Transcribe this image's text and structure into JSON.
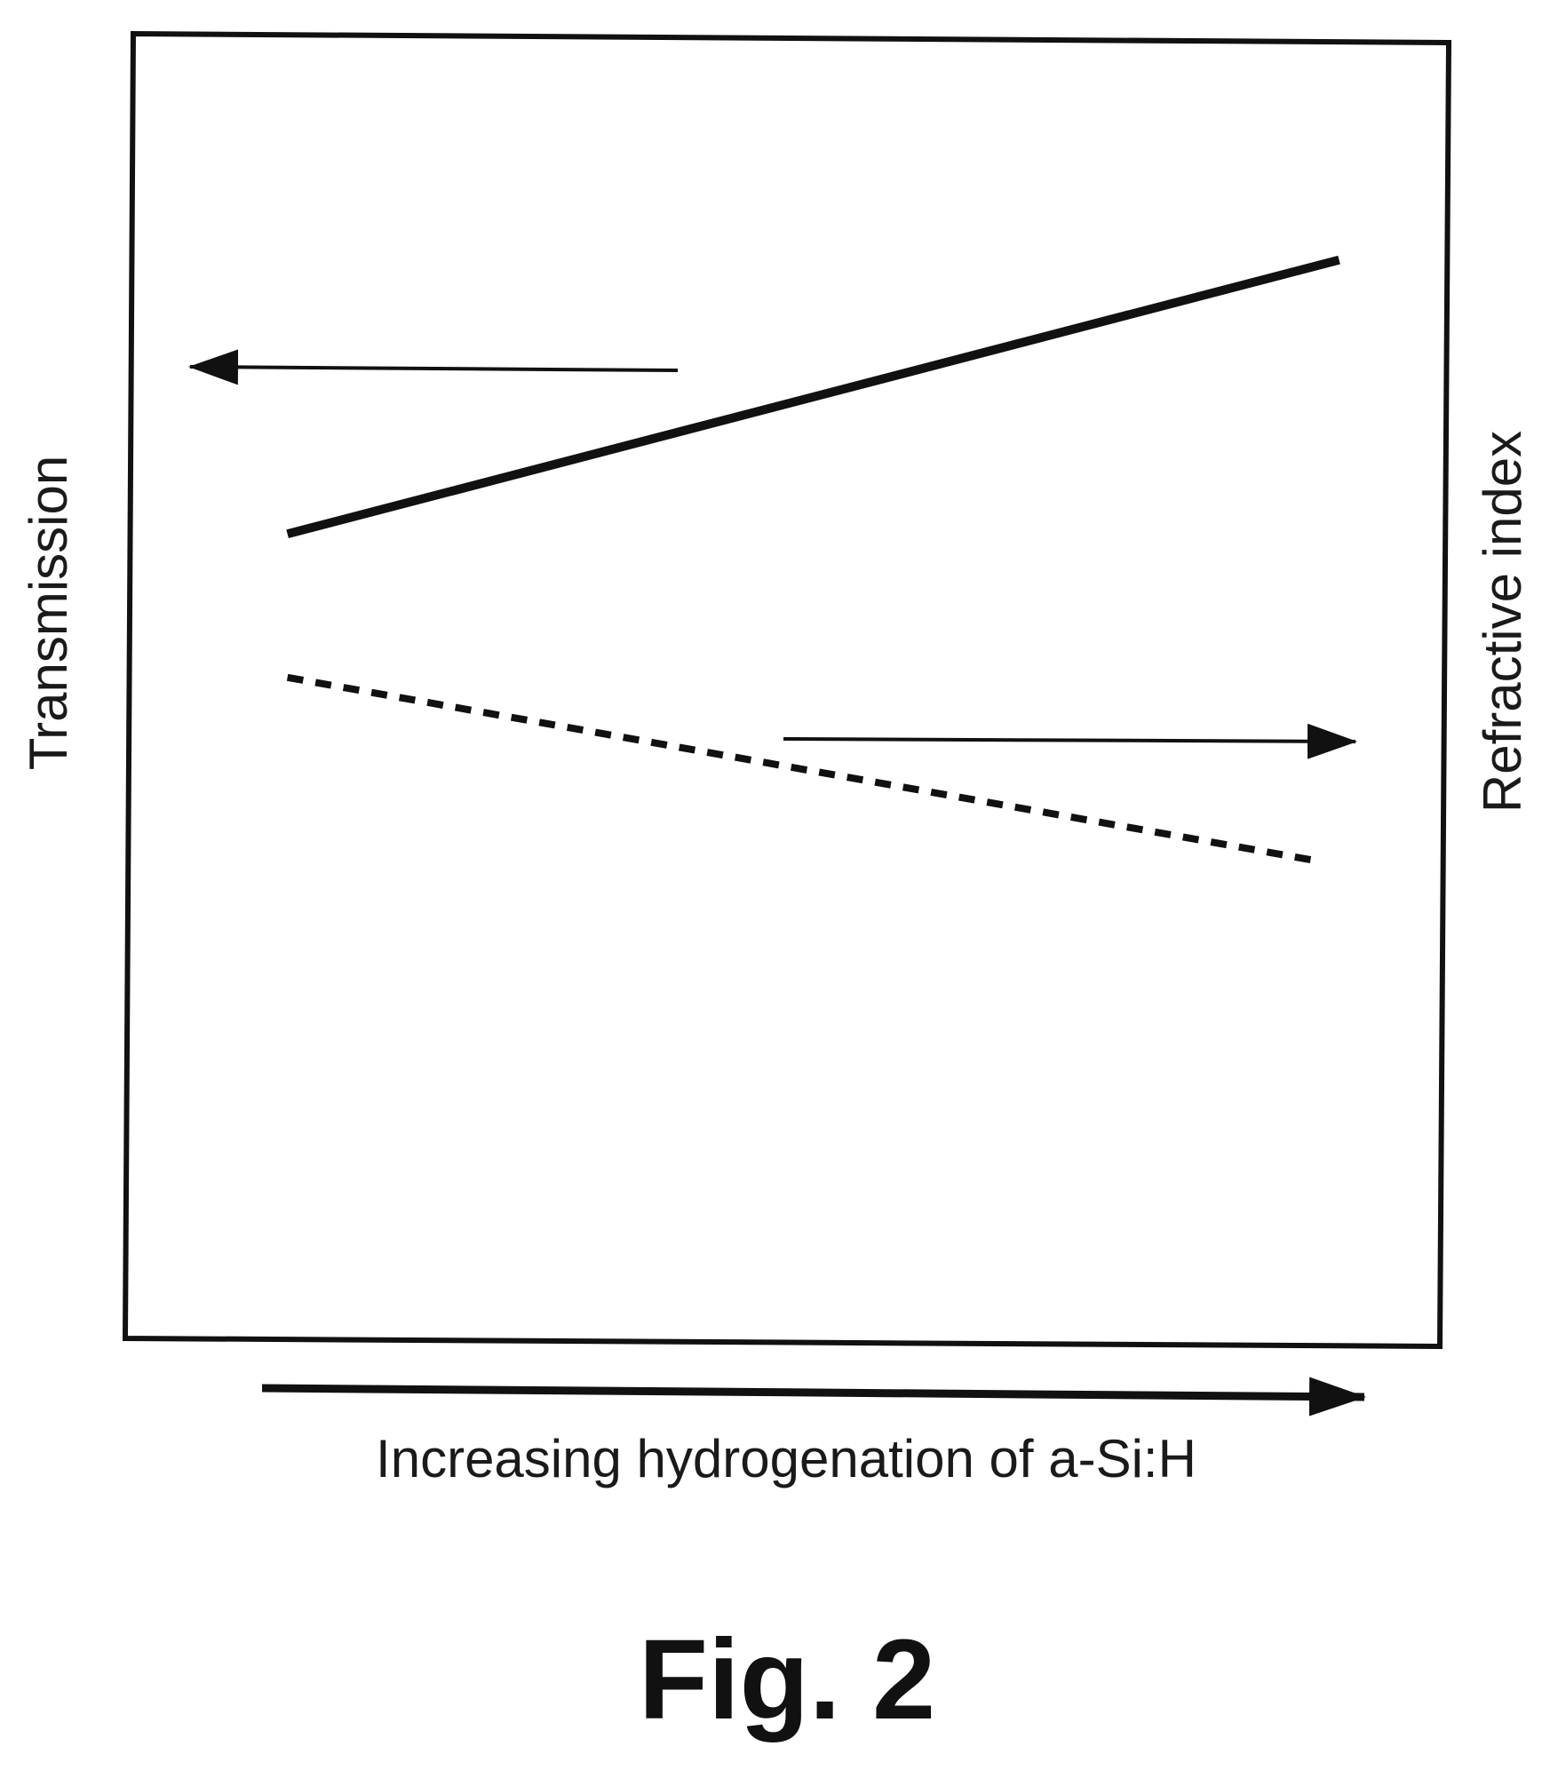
{
  "figure": {
    "caption": "Fig. 2"
  },
  "chart_data": {
    "type": "line",
    "title": "",
    "xlabel": "Increasing hydrogenation of a-Si:H",
    "ylabel_left": "Transmission",
    "ylabel_right": "Refractive index",
    "x_ticks": [],
    "y_ticks": [],
    "grid": false,
    "legend": "none",
    "xlim": [
      0,
      1
    ],
    "ylim": [
      0,
      1
    ],
    "series": [
      {
        "axis": "left",
        "style": "solid",
        "color": "#111111",
        "x": [
          0.12,
          0.92
        ],
        "y": [
          0.62,
          0.83
        ]
      },
      {
        "axis": "right",
        "style": "dashed",
        "color": "#111111",
        "x": [
          0.12,
          0.9
        ],
        "y": [
          0.51,
          0.37
        ]
      }
    ],
    "annotations": [
      {
        "type": "arrow",
        "points_to": "left-axis",
        "attached_series": 0
      },
      {
        "type": "arrow",
        "points_to": "right-axis",
        "attached_series": 1
      },
      {
        "type": "arrow",
        "points_to": "increasing-x",
        "attached_to": "xlabel"
      }
    ]
  }
}
